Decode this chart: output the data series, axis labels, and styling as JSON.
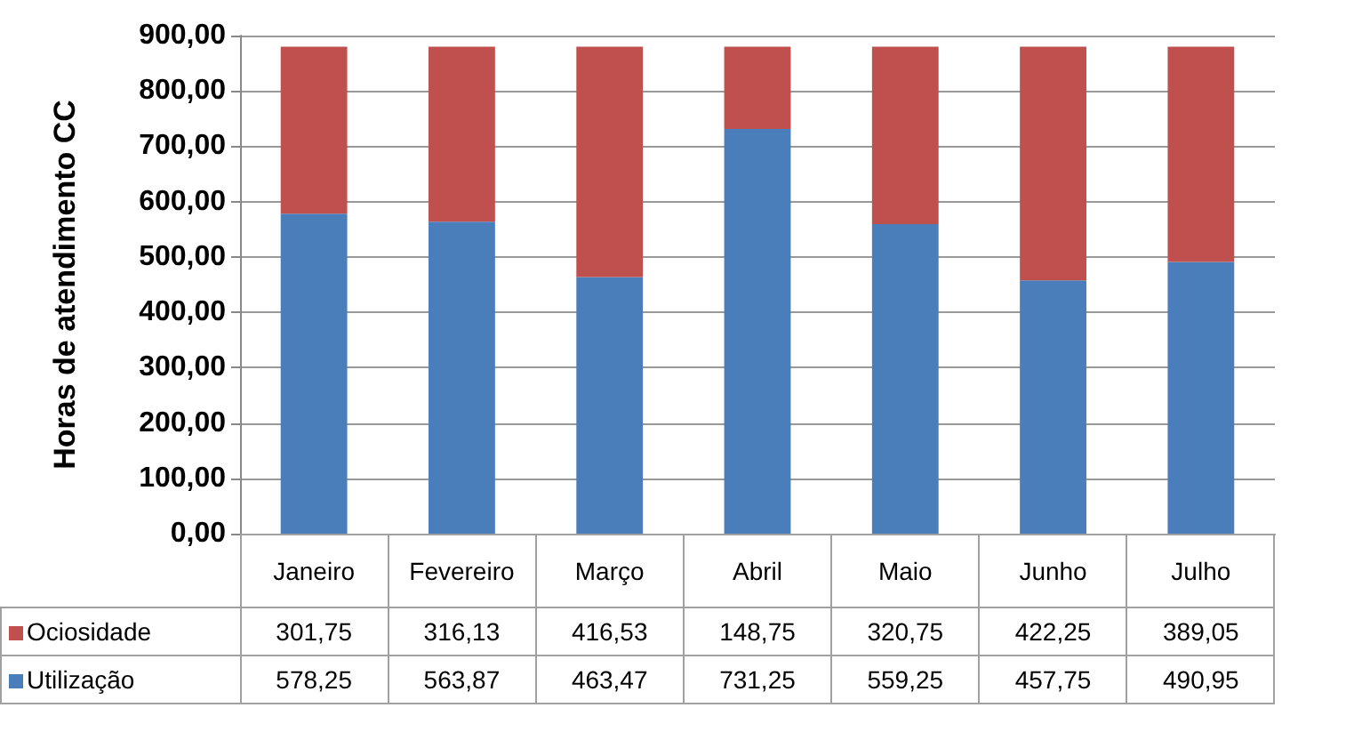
{
  "chart_data": {
    "type": "bar",
    "stacked": true,
    "ylabel": "Horas de atendimento CC",
    "categories": [
      "Janeiro",
      "Fevereiro",
      "Março",
      "Abril",
      "Maio",
      "Junho",
      "Julho"
    ],
    "series": [
      {
        "name": "Utilização",
        "color": "#4a7ebb",
        "values": [
          578.25,
          563.87,
          463.47,
          731.25,
          559.25,
          457.75,
          490.95
        ],
        "value_labels": [
          "578,25",
          "563,87",
          "463,47",
          "731,25",
          "559,25",
          "457,75",
          "490,95"
        ]
      },
      {
        "name": "Ociosidade",
        "color": "#c0504d",
        "values": [
          301.75,
          316.13,
          416.53,
          148.75,
          320.75,
          422.25,
          389.05
        ],
        "value_labels": [
          "301,75",
          "316,13",
          "416,53",
          "148,75",
          "320,75",
          "422,25",
          "389,05"
        ]
      }
    ],
    "ylim": [
      0,
      900
    ],
    "yticks": [
      {
        "value": 0,
        "label": "0,00"
      },
      {
        "value": 100,
        "label": "100,00"
      },
      {
        "value": 200,
        "label": "200,00"
      },
      {
        "value": 300,
        "label": "300,00"
      },
      {
        "value": 400,
        "label": "400,00"
      },
      {
        "value": 500,
        "label": "500,00"
      },
      {
        "value": 600,
        "label": "600,00"
      },
      {
        "value": 700,
        "label": "700,00"
      },
      {
        "value": 800,
        "label": "800,00"
      },
      {
        "value": 900,
        "label": "900,00"
      }
    ],
    "grid": "y",
    "legend": "bottom left"
  }
}
